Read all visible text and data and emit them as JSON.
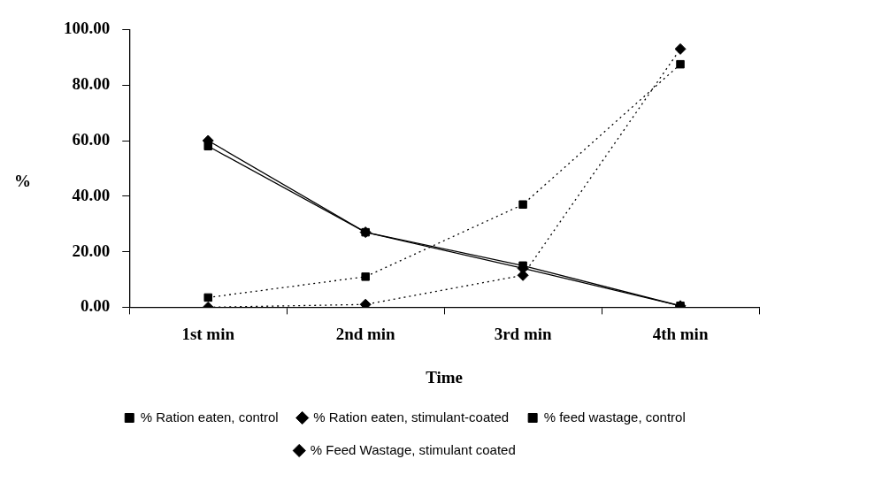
{
  "chart_data": {
    "type": "line",
    "xlabel": "Time",
    "ylabel": "%",
    "categories": [
      "1st min",
      "2nd min",
      "3rd min",
      "4th min"
    ],
    "ylim": [
      0,
      100
    ],
    "yticks": [
      {
        "value": 0,
        "label": "0.00"
      },
      {
        "value": 20,
        "label": "20.00"
      },
      {
        "value": 40,
        "label": "40.00"
      },
      {
        "value": 60,
        "label": "60.00"
      },
      {
        "value": 80,
        "label": "80.00"
      },
      {
        "value": 100,
        "label": "100.00"
      }
    ],
    "grid": false,
    "legend": "bottom",
    "series": [
      {
        "name": "% Ration eaten, control",
        "color": "#000000",
        "marker": "square",
        "line_style": "solid",
        "values": [
          58,
          27,
          15,
          0.5
        ]
      },
      {
        "name": "% Ration eaten, stimulant-coated",
        "color": "#000000",
        "marker": "diamond",
        "line_style": "solid",
        "values": [
          60,
          27,
          14,
          0.5
        ]
      },
      {
        "name": "% feed wastage, control",
        "color": "#000000",
        "marker": "square",
        "line_style": "dotted",
        "values": [
          3.5,
          11,
          37,
          87.5
        ]
      },
      {
        "name": "% Feed Wastage, stimulant coated",
        "color": "#000000",
        "marker": "diamond",
        "line_style": "dotted",
        "values": [
          0,
          1,
          11.5,
          93
        ]
      }
    ]
  }
}
